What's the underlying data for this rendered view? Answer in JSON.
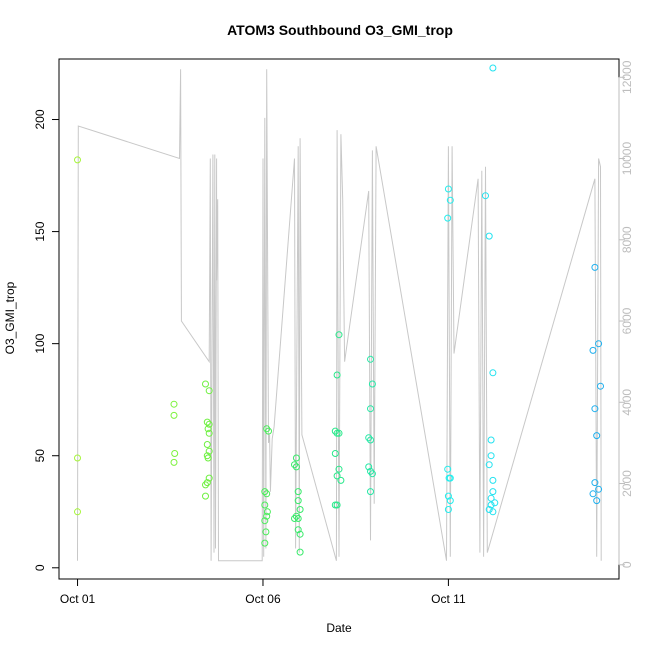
{
  "chart_data": {
    "type": "scatter",
    "title": "ATOM3 Southbound O3_GMI_trop",
    "xlabel": "Date",
    "ylabel": "O3_GMI_trop",
    "x_ticks": [
      {
        "day": 1,
        "label": "Oct 01"
      },
      {
        "day": 6,
        "label": "Oct 06"
      },
      {
        "day": 11,
        "label": "Oct 11"
      }
    ],
    "y_ticks": [
      0,
      50,
      100,
      150,
      200
    ],
    "y2_ticks": [
      0,
      2000,
      4000,
      6000,
      8000,
      10000,
      12000
    ],
    "xlim_days": [
      0.5,
      15.6
    ],
    "ylim": [
      -5,
      227
    ],
    "y2lim": [
      -350,
      12450
    ],
    "colors": {
      "altitude_line": "#c8c8c8",
      "right_axis": "#bdbdbd",
      "frame": "#000000"
    },
    "altitude_series": {
      "name": "",
      "axis": "right",
      "points": [
        [
          1.0,
          100
        ],
        [
          1.02,
          10800
        ],
        [
          3.75,
          10000
        ],
        [
          3.78,
          12200
        ],
        [
          3.8,
          6200
        ],
        [
          3.8,
          6000
        ],
        [
          4.55,
          5000
        ],
        [
          4.58,
          10000
        ],
        [
          4.6,
          100
        ],
        [
          4.65,
          10100
        ],
        [
          4.68,
          300
        ],
        [
          4.7,
          10100
        ],
        [
          4.72,
          400
        ],
        [
          4.75,
          10000
        ],
        [
          4.75,
          7000
        ],
        [
          4.78,
          9000
        ],
        [
          4.8,
          100
        ],
        [
          5.98,
          100
        ],
        [
          6.0,
          10000
        ],
        [
          6.02,
          200
        ],
        [
          6.05,
          11000
        ],
        [
          6.08,
          400
        ],
        [
          6.1,
          12200
        ],
        [
          6.15,
          3000
        ],
        [
          6.18,
          3200
        ],
        [
          6.2,
          1800
        ],
        [
          6.25,
          3100
        ],
        [
          6.3,
          3400
        ],
        [
          6.85,
          10000
        ],
        [
          6.88,
          400
        ],
        [
          6.95,
          10300
        ],
        [
          6.98,
          300
        ],
        [
          7.0,
          10500
        ],
        [
          7.05,
          3200
        ],
        [
          7.98,
          100
        ],
        [
          8.0,
          10700
        ],
        [
          8.05,
          200
        ],
        [
          8.1,
          10600
        ],
        [
          8.15,
          9000
        ],
        [
          8.2,
          5000
        ],
        [
          8.85,
          9200
        ],
        [
          8.9,
          600
        ],
        [
          8.95,
          10200
        ],
        [
          9.0,
          1500
        ],
        [
          9.05,
          10300
        ],
        [
          10.95,
          100
        ],
        [
          11.0,
          10300
        ],
        [
          11.05,
          200
        ],
        [
          11.1,
          10300
        ],
        [
          11.15,
          5200
        ],
        [
          11.8,
          9500
        ],
        [
          11.85,
          300
        ],
        [
          11.9,
          9700
        ],
        [
          11.95,
          200
        ],
        [
          12.0,
          9800
        ],
        [
          12.05,
          300
        ],
        [
          14.95,
          9500
        ],
        [
          15.0,
          200
        ],
        [
          15.05,
          10000
        ],
        [
          15.1,
          9800
        ],
        [
          15.12,
          100
        ]
      ]
    },
    "o3_series": {
      "name": "",
      "axis": "left",
      "points": [
        [
          1.0,
          182,
          "#a6f53a"
        ],
        [
          1.0,
          49,
          "#a6f53a"
        ],
        [
          1.0,
          25,
          "#a6f53a"
        ],
        [
          3.6,
          73,
          "#7cf23c"
        ],
        [
          3.6,
          68,
          "#7cf23c"
        ],
        [
          3.62,
          51,
          "#7cf23c"
        ],
        [
          3.6,
          47,
          "#7cf23c"
        ],
        [
          4.45,
          82,
          "#6ef040"
        ],
        [
          4.55,
          79,
          "#6ef040"
        ],
        [
          4.5,
          65,
          "#6ef040"
        ],
        [
          4.55,
          64,
          "#6ef040"
        ],
        [
          4.52,
          62,
          "#6ef040"
        ],
        [
          4.55,
          60,
          "#6ef040"
        ],
        [
          4.5,
          55,
          "#6ef040"
        ],
        [
          4.55,
          52,
          "#6ef040"
        ],
        [
          4.5,
          50,
          "#6ef040"
        ],
        [
          4.52,
          49,
          "#6ef040"
        ],
        [
          4.55,
          40,
          "#6ef040"
        ],
        [
          4.5,
          38,
          "#6ef040"
        ],
        [
          4.45,
          37,
          "#6ef040"
        ],
        [
          4.45,
          32,
          "#6ef040"
        ],
        [
          6.1,
          62,
          "#4aec5a"
        ],
        [
          6.15,
          61,
          "#4aec5a"
        ],
        [
          6.05,
          34,
          "#4aec5a"
        ],
        [
          6.1,
          33,
          "#4aec5a"
        ],
        [
          6.05,
          28,
          "#4aec5a"
        ],
        [
          6.12,
          25,
          "#4aec5a"
        ],
        [
          6.1,
          23,
          "#4aec5a"
        ],
        [
          6.05,
          21,
          "#4aec5a"
        ],
        [
          6.08,
          16,
          "#4aec5a"
        ],
        [
          6.05,
          11,
          "#4aec5a"
        ],
        [
          6.9,
          49,
          "#38ea6a"
        ],
        [
          6.85,
          46,
          "#38ea6a"
        ],
        [
          6.9,
          45,
          "#38ea6a"
        ],
        [
          6.95,
          34,
          "#38ea6a"
        ],
        [
          6.95,
          30,
          "#38ea6a"
        ],
        [
          7.0,
          26,
          "#38ea6a"
        ],
        [
          6.9,
          23,
          "#38ea6a"
        ],
        [
          6.85,
          22,
          "#38ea6a"
        ],
        [
          6.95,
          22,
          "#38ea6a"
        ],
        [
          6.95,
          17,
          "#38ea6a"
        ],
        [
          7.0,
          15,
          "#38ea6a"
        ],
        [
          7.0,
          7,
          "#38ea6a"
        ],
        [
          8.05,
          104,
          "#28e88a"
        ],
        [
          8.0,
          86,
          "#28e88a"
        ],
        [
          7.95,
          61,
          "#28e88a"
        ],
        [
          8.0,
          60,
          "#28e88a"
        ],
        [
          8.05,
          60,
          "#28e88a"
        ],
        [
          7.95,
          51,
          "#28e88a"
        ],
        [
          8.05,
          44,
          "#28e88a"
        ],
        [
          8.0,
          41,
          "#28e88a"
        ],
        [
          8.1,
          39,
          "#28e88a"
        ],
        [
          8.0,
          28,
          "#28e88a"
        ],
        [
          7.95,
          28,
          "#28e88a"
        ],
        [
          8.9,
          93,
          "#26e8a6"
        ],
        [
          8.95,
          82,
          "#26e8a6"
        ],
        [
          8.9,
          71,
          "#26e8a6"
        ],
        [
          8.85,
          58,
          "#26e8a6"
        ],
        [
          8.9,
          57,
          "#26e8a6"
        ],
        [
          8.85,
          45,
          "#26e8a6"
        ],
        [
          8.9,
          43,
          "#26e8a6"
        ],
        [
          8.95,
          42,
          "#26e8a6"
        ],
        [
          8.9,
          34,
          "#26e8a6"
        ],
        [
          11.0,
          169,
          "#22eeee"
        ],
        [
          11.05,
          164,
          "#22eeee"
        ],
        [
          10.98,
          156,
          "#22eeee"
        ],
        [
          10.98,
          44,
          "#22eeee"
        ],
        [
          11.02,
          40,
          "#22eeee"
        ],
        [
          11.05,
          40,
          "#22eeee"
        ],
        [
          11.0,
          32,
          "#22eeee"
        ],
        [
          11.05,
          30,
          "#22eeee"
        ],
        [
          11.0,
          26,
          "#22eeee"
        ],
        [
          12.2,
          223,
          "#22e2f0"
        ],
        [
          12.0,
          166,
          "#22e2f0"
        ],
        [
          12.1,
          148,
          "#22e2f0"
        ],
        [
          12.2,
          87,
          "#22e2f0"
        ],
        [
          12.15,
          57,
          "#22e2f0"
        ],
        [
          12.15,
          50,
          "#22e2f0"
        ],
        [
          12.1,
          46,
          "#22e2f0"
        ],
        [
          12.2,
          39,
          "#22e2f0"
        ],
        [
          12.2,
          34,
          "#22e2f0"
        ],
        [
          12.15,
          31,
          "#22e2f0"
        ],
        [
          12.25,
          29,
          "#22e2f0"
        ],
        [
          12.15,
          28,
          "#22e2f0"
        ],
        [
          12.1,
          26,
          "#22e2f0"
        ],
        [
          12.2,
          25,
          "#22e2f0"
        ],
        [
          14.95,
          134,
          "#20b0ee"
        ],
        [
          15.05,
          100,
          "#20b0ee"
        ],
        [
          14.9,
          97,
          "#20b0ee"
        ],
        [
          15.1,
          81,
          "#20b0ee"
        ],
        [
          14.95,
          71,
          "#20b0ee"
        ],
        [
          15.0,
          59,
          "#20b0ee"
        ],
        [
          14.95,
          38,
          "#20b0ee"
        ],
        [
          15.05,
          35,
          "#20b0ee"
        ],
        [
          14.9,
          33,
          "#20b0ee"
        ],
        [
          15.0,
          30,
          "#20b0ee"
        ]
      ]
    }
  }
}
